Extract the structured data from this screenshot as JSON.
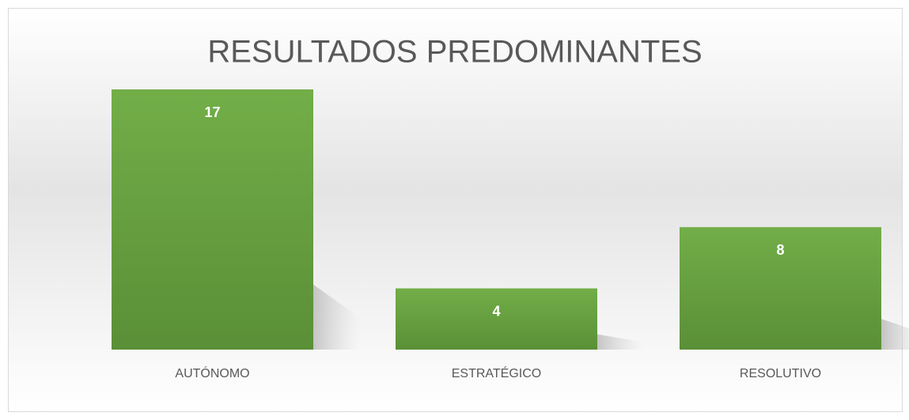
{
  "chart_data": {
    "type": "bar",
    "title": "RESULTADOS PREDOMINANTES",
    "categories": [
      "AUTÓNOMO",
      "ESTRATÉGICO",
      "RESOLUTIVO"
    ],
    "values": [
      17,
      4,
      8
    ],
    "color": "#70ad47"
  }
}
